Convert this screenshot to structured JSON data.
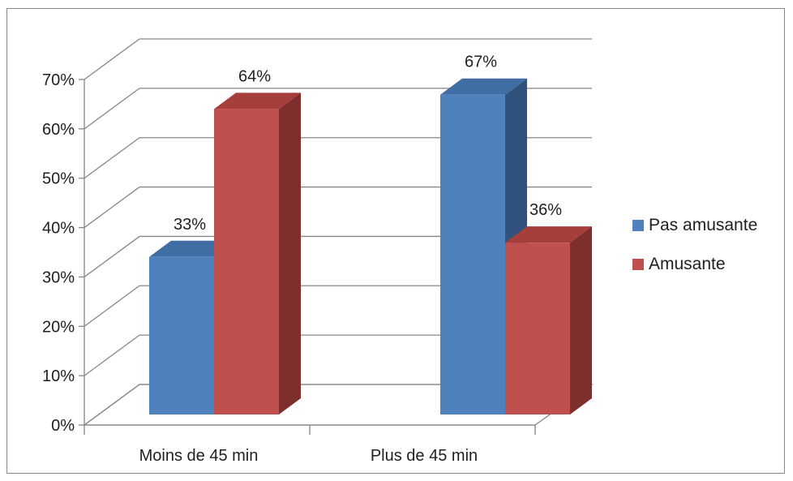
{
  "chart_data": {
    "type": "bar",
    "style": "3d-clustered-column",
    "categories": [
      "Moins de 45 min",
      "Plus de 45 min"
    ],
    "series": [
      {
        "name": "Pas amusante",
        "values": [
          33,
          67
        ],
        "data_labels": [
          "33%",
          "67%"
        ],
        "color": "#4F81BD",
        "side_color": "#30527C",
        "top_color": "#3F6DA4"
      },
      {
        "name": "Amusante",
        "values": [
          64,
          36
        ],
        "data_labels": [
          "64%",
          "36%"
        ],
        "color": "#C0504D",
        "side_color": "#7E2E2D",
        "top_color": "#A63F3C"
      }
    ],
    "yticks": [
      "0%",
      "10%",
      "20%",
      "30%",
      "40%",
      "50%",
      "60%",
      "70%"
    ],
    "ylim": [
      0,
      70
    ],
    "title": "",
    "xlabel": "",
    "ylabel": "",
    "grid": true,
    "legend_position": "right"
  }
}
